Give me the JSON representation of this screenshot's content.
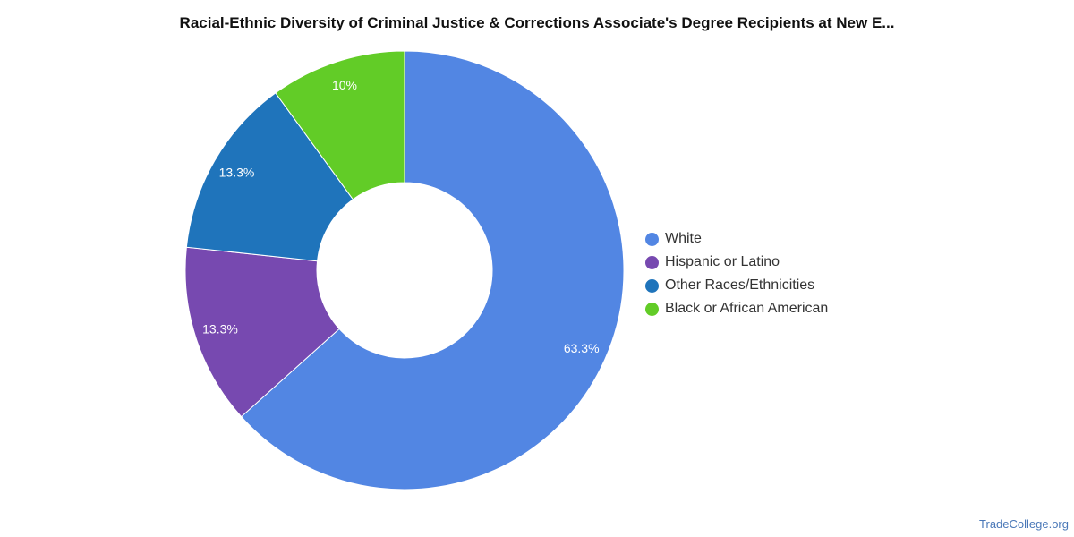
{
  "chart_data": {
    "type": "pie",
    "title": "Racial-Ethnic Diversity of Criminal Justice & Corrections Associate's Degree Recipients at New E...",
    "donut": true,
    "legend_position": "right",
    "slices": [
      {
        "name": "White",
        "value": 63.3,
        "label": "63.3%",
        "color": "#5286e3"
      },
      {
        "name": "Hispanic or Latino",
        "value": 13.3,
        "label": "13.3%",
        "color": "#7749b0"
      },
      {
        "name": "Other Races/Ethnicities",
        "value": 13.3,
        "label": "13.3%",
        "color": "#1f74bb"
      },
      {
        "name": "Black or African American",
        "value": 10,
        "label": "10%",
        "color": "#62cc27"
      }
    ]
  },
  "watermark": "TradeCollege.org"
}
